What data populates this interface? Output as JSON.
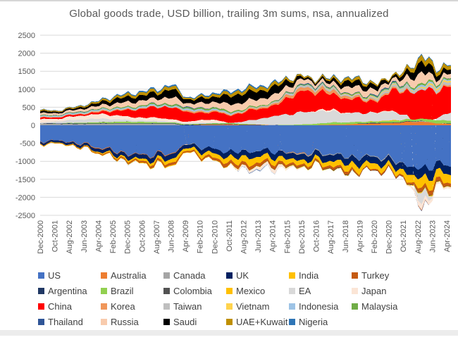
{
  "chart_data": {
    "type": "area",
    "stacked": true,
    "title": "Global goods trade, USD billion, trailing 3m sums, nsa, annualized",
    "ylim": [
      -2500,
      2500
    ],
    "ytick_step": 500,
    "grid": true,
    "legend_position": "bottom",
    "x_ticks": [
      "Dec-2000",
      "Oct-2001",
      "Aug-2002",
      "Jun-2003",
      "Apr-2004",
      "Feb-2005",
      "Dec-2005",
      "Oct-2006",
      "Aug-2007",
      "Jun-2008",
      "Apr-2009",
      "Feb-2010",
      "Dec-2010",
      "Oct-2011",
      "Aug-2012",
      "Jun-2013",
      "Apr-2014",
      "Feb-2015",
      "Dec-2015",
      "Oct-2016",
      "Aug-2017",
      "Jun-2018",
      "Apr-2019",
      "Feb-2020",
      "Dec-2020",
      "Oct-2021",
      "Aug-2022",
      "Jun-2023",
      "Apr-2024"
    ],
    "series": [
      {
        "name": "US",
        "color": "#4472C4",
        "values": [
          -440,
          -420,
          -460,
          -520,
          -610,
          -700,
          -790,
          -820,
          -800,
          -780,
          -500,
          -600,
          -680,
          -740,
          -730,
          -700,
          -720,
          -760,
          -770,
          -750,
          -800,
          -870,
          -880,
          -850,
          -950,
          -1100,
          -1250,
          -1050,
          -1150
        ]
      },
      {
        "name": "Australia",
        "color": "#ED7D31",
        "values": [
          -10,
          -5,
          -10,
          -15,
          -20,
          -15,
          -15,
          -12,
          -18,
          -20,
          -5,
          15,
          20,
          25,
          5,
          10,
          0,
          -10,
          -15,
          5,
          20,
          25,
          45,
          50,
          60,
          90,
          100,
          55,
          40
        ]
      },
      {
        "name": "Canada",
        "color": "#A5A5A5",
        "values": [
          45,
          40,
          35,
          35,
          40,
          45,
          45,
          40,
          40,
          45,
          -15,
          -5,
          0,
          5,
          -5,
          -5,
          5,
          -15,
          -25,
          -25,
          -20,
          -15,
          -15,
          -25,
          -30,
          0,
          20,
          -5,
          0
        ]
      },
      {
        "name": "UK",
        "color": "#002060",
        "values": [
          -50,
          -55,
          -60,
          -70,
          -90,
          -100,
          -110,
          -120,
          -135,
          -140,
          -95,
          -120,
          -135,
          -150,
          -160,
          -155,
          -160,
          -160,
          -160,
          -170,
          -180,
          -185,
          -190,
          -175,
          -170,
          -200,
          -280,
          -240,
          -230
        ]
      },
      {
        "name": "India",
        "color": "#FFC000",
        "values": [
          -8,
          -10,
          -12,
          -15,
          -25,
          -35,
          -45,
          -60,
          -80,
          -110,
          -75,
          -100,
          -120,
          -150,
          -190,
          -170,
          -140,
          -135,
          -115,
          -105,
          -140,
          -180,
          -165,
          -150,
          -120,
          -190,
          -280,
          -240,
          -260
        ]
      },
      {
        "name": "Turkey",
        "color": "#C55A11",
        "values": [
          -15,
          -8,
          -12,
          -18,
          -25,
          -35,
          -40,
          -50,
          -60,
          -70,
          -35,
          -50,
          -70,
          -100,
          -85,
          -90,
          -80,
          -65,
          -55,
          -55,
          -70,
          -75,
          -25,
          -45,
          -45,
          -40,
          -110,
          -115,
          -80
        ]
      },
      {
        "name": "Argentina",
        "color": "#203864",
        "values": [
          5,
          8,
          15,
          15,
          12,
          10,
          10,
          10,
          10,
          10,
          15,
          12,
          10,
          8,
          10,
          5,
          5,
          0,
          0,
          0,
          -5,
          -8,
          10,
          15,
          12,
          12,
          5,
          -8,
          15
        ]
      },
      {
        "name": "Brazil",
        "color": "#92D050",
        "values": [
          0,
          5,
          12,
          22,
          30,
          38,
          42,
          42,
          35,
          25,
          20,
          15,
          25,
          25,
          20,
          5,
          0,
          10,
          25,
          45,
          60,
          55,
          45,
          40,
          50,
          55,
          60,
          90,
          80
        ]
      },
      {
        "name": "Colombia",
        "color": "#525252",
        "values": [
          2,
          0,
          0,
          0,
          2,
          2,
          0,
          -2,
          -3,
          0,
          0,
          -2,
          -3,
          -3,
          -3,
          -5,
          -8,
          -12,
          -12,
          -10,
          -8,
          -8,
          -8,
          -8,
          -8,
          -10,
          -15,
          -10,
          -10
        ]
      },
      {
        "name": "Mexico",
        "color": "#FFC000",
        "values": [
          -8,
          -8,
          -8,
          -6,
          -8,
          -10,
          -10,
          -12,
          -12,
          -15,
          -5,
          -5,
          -5,
          -8,
          -5,
          -8,
          -5,
          -12,
          -15,
          -12,
          -10,
          -12,
          0,
          5,
          20,
          -10,
          -25,
          -15,
          -10
        ]
      },
      {
        "name": "EA",
        "color": "#D9D9D9",
        "values": [
          20,
          45,
          80,
          90,
          100,
          75,
          50,
          35,
          40,
          20,
          35,
          25,
          10,
          0,
          80,
          160,
          250,
          300,
          340,
          340,
          300,
          250,
          250,
          230,
          250,
          100,
          -300,
          50,
          250
        ]
      },
      {
        "name": "Japan",
        "color": "#FBE5D6",
        "values": [
          100,
          70,
          90,
          110,
          130,
          110,
          90,
          80,
          90,
          60,
          30,
          80,
          90,
          -20,
          -60,
          -90,
          -100,
          -40,
          -20,
          40,
          40,
          10,
          -10,
          15,
          25,
          -20,
          -150,
          -60,
          -50
        ]
      },
      {
        "name": "China",
        "color": "#FF0000",
        "values": [
          40,
          40,
          45,
          40,
          50,
          120,
          180,
          250,
          300,
          330,
          280,
          180,
          230,
          200,
          270,
          280,
          280,
          480,
          580,
          500,
          430,
          380,
          380,
          280,
          600,
          650,
          850,
          750,
          750
        ]
      },
      {
        "name": "Korea",
        "color": "#F0965A",
        "values": [
          15,
          12,
          10,
          15,
          30,
          25,
          20,
          15,
          15,
          5,
          40,
          40,
          35,
          25,
          30,
          40,
          45,
          85,
          90,
          90,
          90,
          70,
          40,
          45,
          45,
          30,
          -30,
          20,
          50
        ]
      },
      {
        "name": "Taiwan",
        "color": "#BFBFBF",
        "values": [
          10,
          12,
          15,
          15,
          15,
          15,
          15,
          18,
          20,
          15,
          25,
          20,
          20,
          20,
          25,
          30,
          35,
          45,
          50,
          50,
          50,
          45,
          40,
          55,
          60,
          65,
          50,
          80,
          80
        ]
      },
      {
        "name": "Vietnam",
        "color": "#FFD34D",
        "values": [
          0,
          0,
          -2,
          -3,
          -4,
          -4,
          -4,
          -5,
          -8,
          -12,
          -8,
          -10,
          -10,
          -8,
          0,
          0,
          0,
          -2,
          0,
          5,
          8,
          8,
          10,
          20,
          20,
          10,
          30,
          45,
          40
        ]
      },
      {
        "name": "Indonesia",
        "color": "#9DC3E6",
        "values": [
          25,
          22,
          22,
          25,
          25,
          25,
          25,
          28,
          25,
          20,
          30,
          25,
          25,
          25,
          0,
          -8,
          -10,
          10,
          10,
          12,
          15,
          -5,
          0,
          20,
          25,
          35,
          55,
          40,
          35
        ]
      },
      {
        "name": "Malaysia",
        "color": "#70AD47",
        "values": [
          15,
          14,
          15,
          18,
          20,
          25,
          28,
          30,
          35,
          40,
          35,
          40,
          40,
          40,
          30,
          25,
          25,
          25,
          25,
          22,
          25,
          28,
          30,
          30,
          30,
          40,
          55,
          40,
          35
        ]
      },
      {
        "name": "Thailand",
        "color": "#2F5597",
        "values": [
          5,
          4,
          5,
          6,
          4,
          -4,
          -6,
          2,
          8,
          0,
          20,
          10,
          5,
          0,
          -8,
          -12,
          5,
          10,
          20,
          20,
          15,
          10,
          10,
          25,
          25,
          10,
          -15,
          5,
          5
        ]
      },
      {
        "name": "Russia",
        "color": "#F8CBAD",
        "values": [
          60,
          55,
          58,
          70,
          85,
          110,
          130,
          135,
          130,
          200,
          90,
          140,
          150,
          200,
          190,
          180,
          190,
          160,
          120,
          90,
          100,
          175,
          180,
          140,
          90,
          190,
          300,
          120,
          130
        ]
      },
      {
        "name": "Saudi",
        "color": "#000000",
        "values": [
          50,
          40,
          40,
          55,
          80,
          120,
          140,
          145,
          150,
          230,
          100,
          130,
          150,
          240,
          240,
          220,
          220,
          150,
          50,
          50,
          90,
          160,
          140,
          130,
          50,
          150,
          310,
          150,
          120
        ]
      },
      {
        "name": "UAE+Kuwait",
        "color": "#BF8F00",
        "values": [
          30,
          28,
          30,
          38,
          45,
          60,
          75,
          80,
          80,
          95,
          40,
          55,
          70,
          90,
          100,
          100,
          90,
          60,
          40,
          40,
          60,
          80,
          80,
          40,
          40,
          90,
          160,
          120,
          110
        ]
      },
      {
        "name": "Nigeria",
        "color": "#2E75B6",
        "values": [
          12,
          10,
          10,
          14,
          18,
          25,
          30,
          35,
          35,
          42,
          20,
          30,
          38,
          42,
          40,
          40,
          30,
          10,
          5,
          10,
          20,
          22,
          20,
          5,
          5,
          12,
          30,
          20,
          25
        ]
      }
    ],
    "colors": {
      "title_text": "#595959",
      "tick_text": "#595959",
      "legend_text": "#404040",
      "gridline": "#D9D9D9"
    }
  }
}
